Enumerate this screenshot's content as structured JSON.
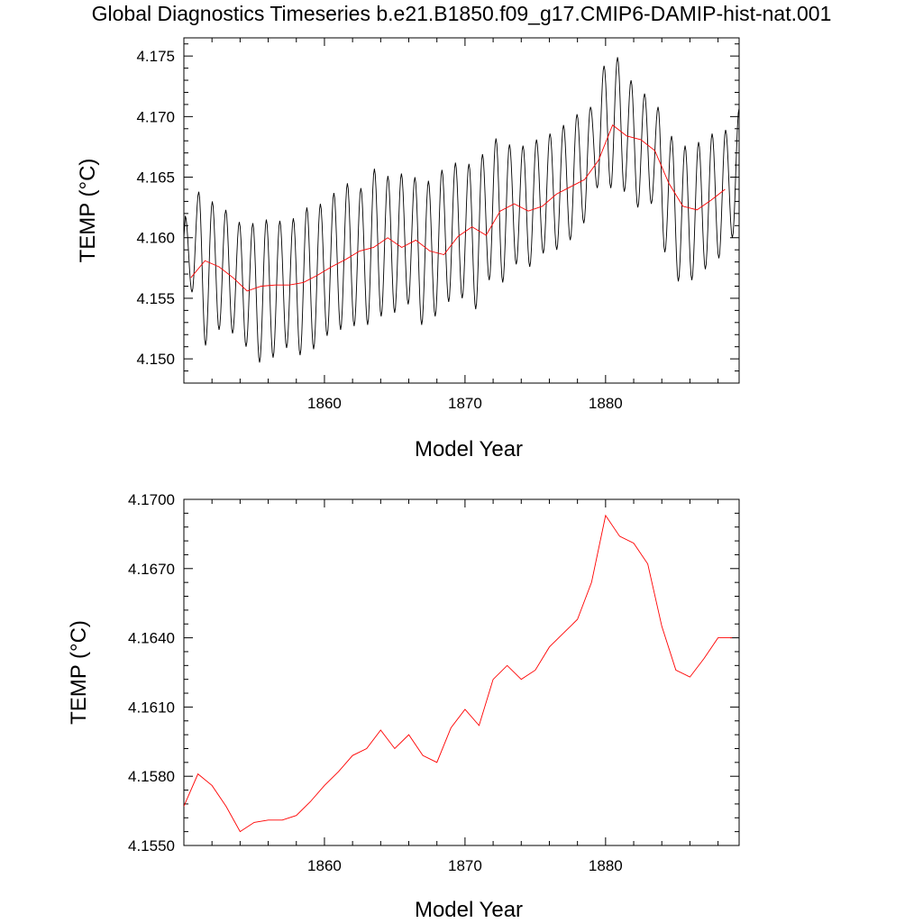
{
  "page": {
    "title": "Global Diagnostics Timeseries b.e21.B1850.f09_g17.CMIP6-DAMIP-hist-nat.001"
  },
  "chart_data": [
    {
      "type": "line",
      "xlabel": "Model Year",
      "ylabel": "TEMP (°C)",
      "xlim": [
        1850.0,
        1889.5
      ],
      "ylim": [
        4.148,
        4.1765
      ],
      "x_ticks": [
        1860,
        1870,
        1880
      ],
      "x_tick_labels": [
        "1860",
        "1870",
        "1880"
      ],
      "y_ticks": [
        4.15,
        4.155,
        4.16,
        4.165,
        4.17,
        4.175
      ],
      "y_tick_labels": [
        "4.150",
        "4.155",
        "4.160",
        "4.165",
        "4.170",
        "4.175"
      ],
      "series": [
        {
          "color": "#000000",
          "description": "monthly values, seasonal cycle",
          "cycle_maxima": [
            4.1618,
            4.1638,
            4.163,
            4.1623,
            4.1613,
            4.1612,
            4.1615,
            4.1614,
            4.1616,
            4.1625,
            4.1628,
            4.1637,
            4.1645,
            4.1641,
            4.1657,
            4.1651,
            4.1653,
            4.165,
            4.1647,
            4.1656,
            4.1662,
            4.1661,
            4.1669,
            4.1682,
            4.1677,
            4.1676,
            4.1681,
            4.1686,
            4.1693,
            4.1702,
            4.1708,
            4.1742,
            4.1749,
            4.173,
            4.1719,
            4.1708,
            4.1684,
            4.1676,
            4.1679,
            4.1686,
            4.1689,
            4.1707
          ],
          "cycle_minima": [
            4.1555,
            4.1511,
            4.1524,
            4.1521,
            4.151,
            4.1497,
            4.1501,
            4.1509,
            4.1503,
            4.1508,
            4.1519,
            4.1524,
            4.1527,
            4.1528,
            4.1535,
            4.1538,
            4.1545,
            4.1528,
            4.1535,
            4.1547,
            4.155,
            4.1541,
            4.1565,
            4.1563,
            4.1578,
            4.1576,
            4.1587,
            4.159,
            4.1598,
            4.1612,
            4.1641,
            4.1641,
            4.1638,
            4.1625,
            4.1628,
            4.1588,
            4.1564,
            4.1565,
            4.1574,
            4.1583,
            4.16
          ]
        },
        {
          "color": "#ff0000",
          "description": "annual mean",
          "x": [
            1850.5,
            1851.5,
            1852.5,
            1853.5,
            1854.5,
            1855.5,
            1856.5,
            1857.5,
            1858.5,
            1859.5,
            1860.5,
            1861.5,
            1862.5,
            1863.5,
            1864.5,
            1865.5,
            1866.5,
            1867.5,
            1868.5,
            1869.5,
            1870.5,
            1871.5,
            1872.5,
            1873.5,
            1874.5,
            1875.5,
            1876.5,
            1877.5,
            1878.5,
            1879.5,
            1880.5,
            1881.5,
            1882.5,
            1883.5,
            1884.5,
            1885.5,
            1886.5,
            1887.5,
            1888.5
          ],
          "y": [
            4.1567,
            4.1581,
            4.1576,
            4.1567,
            4.1556,
            4.156,
            4.1561,
            4.1561,
            4.1563,
            4.1569,
            4.1576,
            4.1582,
            4.1589,
            4.1592,
            4.16,
            4.1592,
            4.1598,
            4.1589,
            4.1586,
            4.1601,
            4.1609,
            4.1602,
            4.1622,
            4.1628,
            4.1622,
            4.1626,
            4.1636,
            4.1642,
            4.1648,
            4.1664,
            4.1693,
            4.1684,
            4.1681,
            4.1672,
            4.1645,
            4.1626,
            4.1623,
            4.1631,
            4.164
          ]
        }
      ]
    },
    {
      "type": "line",
      "xlabel": "Model Year",
      "ylabel": "TEMP (°C)",
      "xlim": [
        1850.0,
        1889.5
      ],
      "ylim": [
        4.155,
        4.17
      ],
      "x_ticks": [
        1860,
        1870,
        1880
      ],
      "x_tick_labels": [
        "1860",
        "1870",
        "1880"
      ],
      "y_ticks": [
        4.155,
        4.158,
        4.161,
        4.164,
        4.167,
        4.17
      ],
      "y_tick_labels": [
        "4.1550",
        "4.1580",
        "4.1610",
        "4.1640",
        "4.1670",
        "4.1700"
      ],
      "series": [
        {
          "color": "#ff0000",
          "description": "annual mean",
          "x": [
            1850.0,
            1851.0,
            1852.0,
            1853.0,
            1854.0,
            1855.0,
            1856.0,
            1857.0,
            1858.0,
            1859.0,
            1860.0,
            1861.0,
            1862.0,
            1863.0,
            1864.0,
            1865.0,
            1866.0,
            1867.0,
            1868.0,
            1869.0,
            1870.0,
            1871.0,
            1872.0,
            1873.0,
            1874.0,
            1875.0,
            1876.0,
            1877.0,
            1878.0,
            1879.0,
            1880.0,
            1881.0,
            1882.0,
            1883.0,
            1884.0,
            1885.0,
            1886.0,
            1887.0,
            1888.0,
            1889.0
          ],
          "y": [
            4.1567,
            4.1581,
            4.1576,
            4.1567,
            4.1556,
            4.156,
            4.1561,
            4.1561,
            4.1563,
            4.1569,
            4.1576,
            4.1582,
            4.1589,
            4.1592,
            4.16,
            4.1592,
            4.1598,
            4.1589,
            4.1586,
            4.1601,
            4.1609,
            4.1602,
            4.1622,
            4.1628,
            4.1622,
            4.1626,
            4.1636,
            4.1642,
            4.1648,
            4.1664,
            4.1693,
            4.1684,
            4.1681,
            4.1672,
            4.1645,
            4.1626,
            4.1623,
            4.1631,
            4.164,
            4.164
          ]
        }
      ]
    }
  ]
}
